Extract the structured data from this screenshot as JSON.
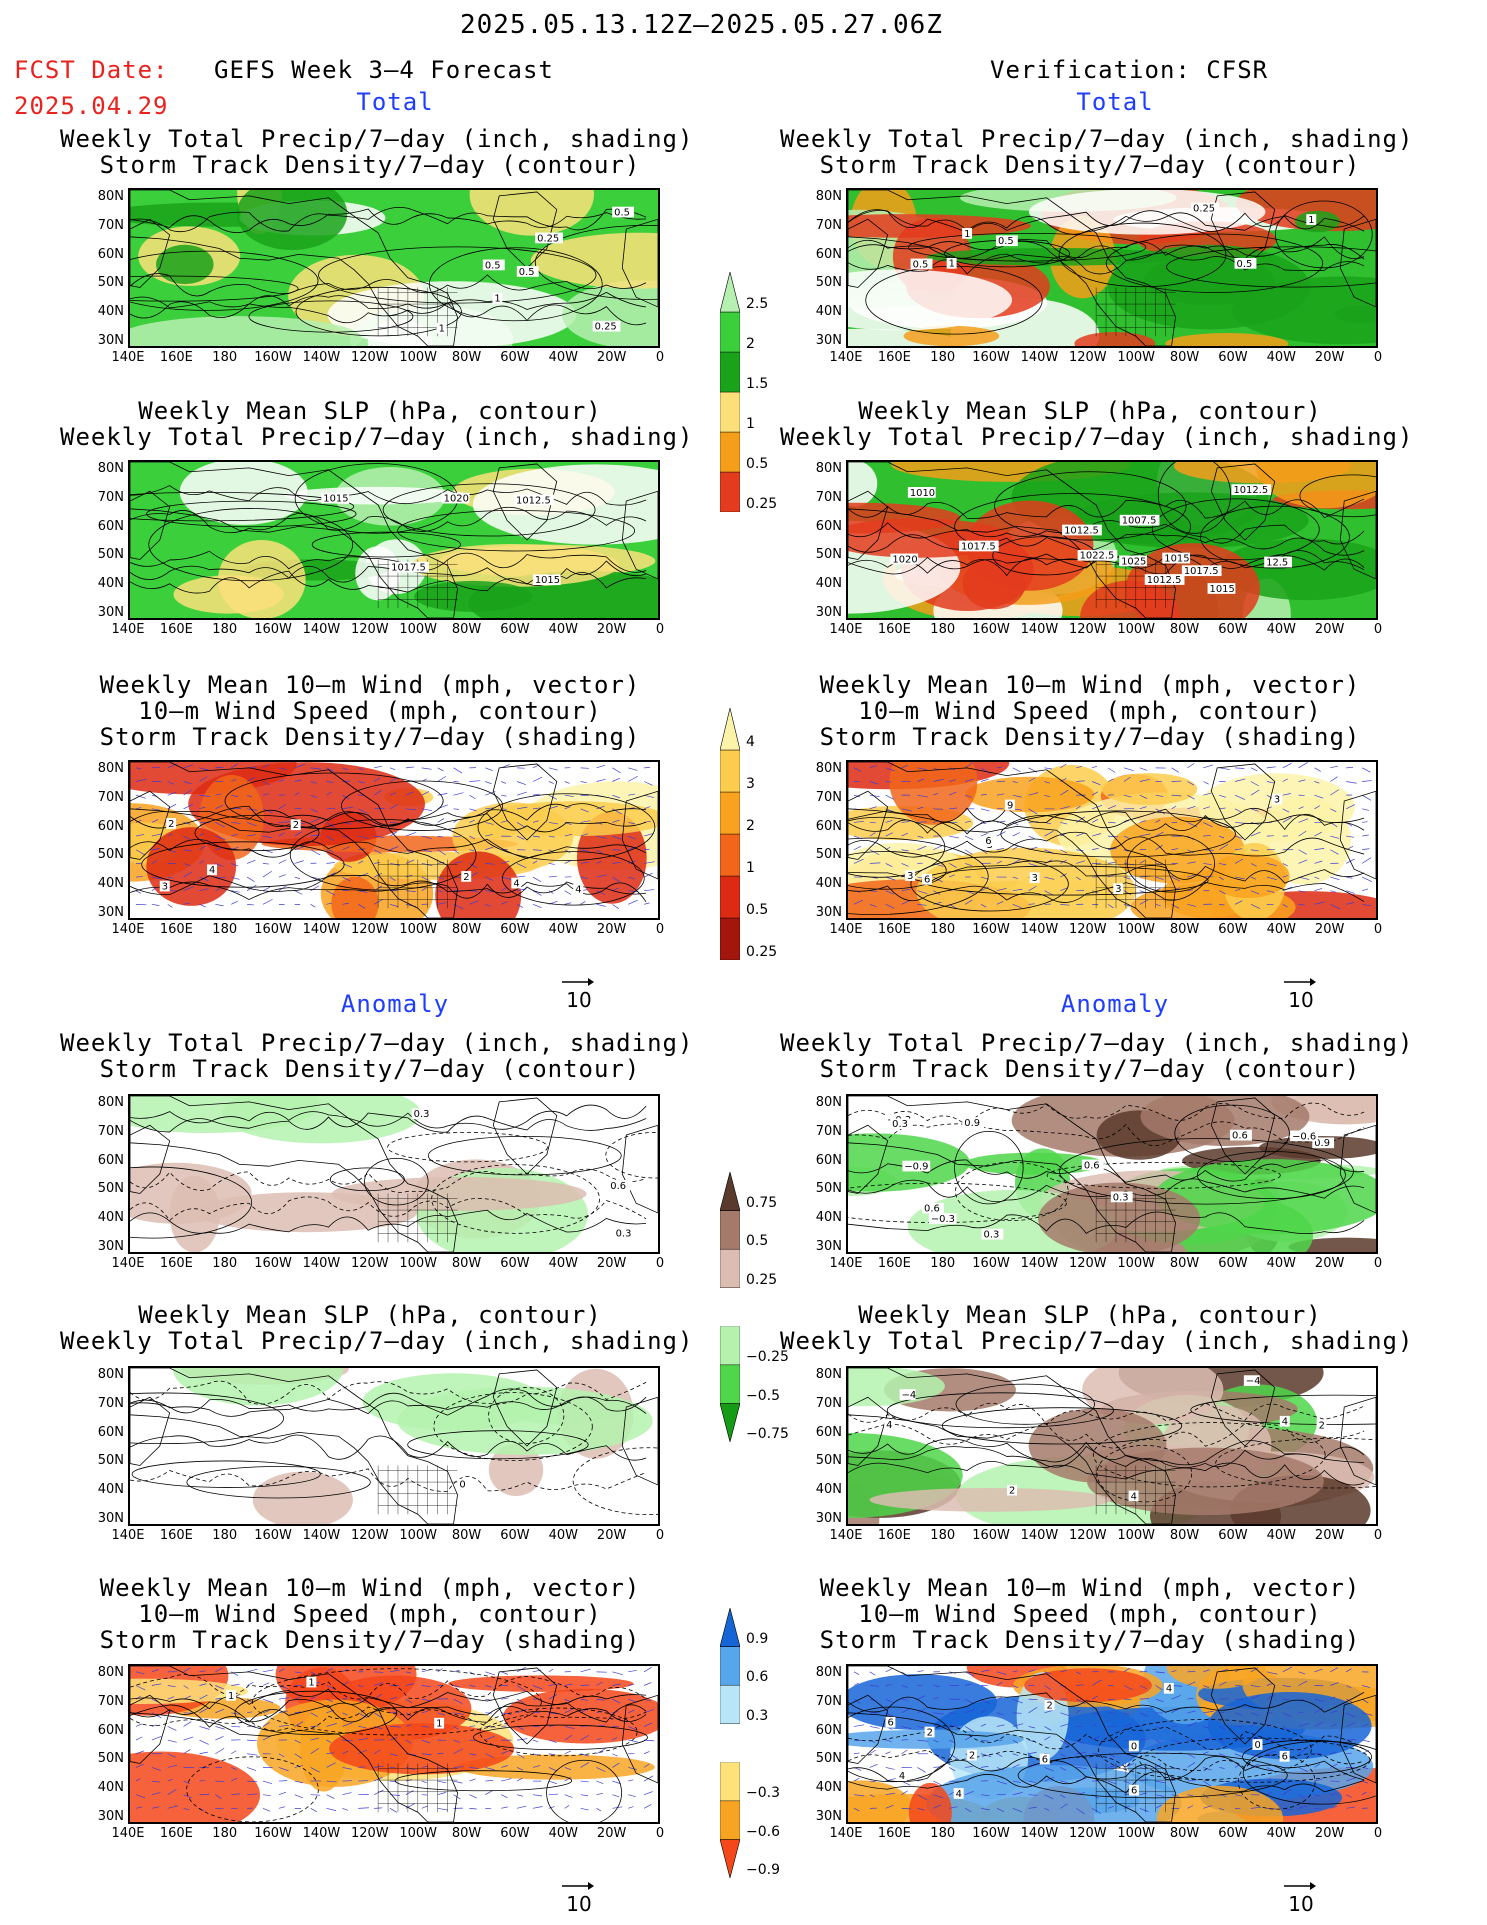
{
  "header": {
    "date_range": "2025.05.13.12Z—2025.05.27.06Z",
    "fcst_label": "FCST Date:",
    "fcst_date": "2025.04.29",
    "left_title": "GEFS Week 3—4 Forecast",
    "right_title": "Verification: CFSR"
  },
  "sections": {
    "total_label": "Total",
    "anomaly_label": "Anomaly"
  },
  "titles": {
    "precip_storm": [
      "Weekly Total Precip/7—day (inch, shading)",
      "Storm Track Density/7—day (contour)"
    ],
    "slp_precip": [
      "Weekly Mean SLP (hPa, contour)",
      "Weekly Total Precip/7—day (inch, shading)"
    ],
    "wind_storm": [
      "Weekly Mean 10—m Wind (mph, vector)",
      "10—m Wind Speed (mph, contour)",
      "Storm Track Density/7—day (shading)"
    ]
  },
  "axes": {
    "lat_ticks": [
      "80N",
      "70N",
      "60N",
      "50N",
      "40N",
      "30N"
    ],
    "lon_ticks": [
      "140E",
      "160E",
      "180",
      "160W",
      "140W",
      "120W",
      "100W",
      "80W",
      "60W",
      "40W",
      "20W",
      "0"
    ]
  },
  "vector_ref": "10",
  "colorbars": {
    "precip_total": {
      "labels": [
        "2.5",
        "2",
        "1.5",
        "1",
        "0.5",
        "0.25"
      ],
      "colors": [
        "#e33b1d",
        "#f59e1a",
        "#fbe07a",
        "#1aa21a",
        "#3ccf3c",
        "#b6f0b0"
      ]
    },
    "storm_total": {
      "labels": [
        "4",
        "3",
        "2",
        "1",
        "0.5",
        "0.25"
      ],
      "colors": [
        "#a3160e",
        "#dd2a13",
        "#f1661a",
        "#f9a21f",
        "#fccd4c",
        "#fdf3a8"
      ]
    },
    "precip_anom": {
      "labels": [
        "0.75",
        "0.5",
        "0.25",
        "−0.25",
        "−0.5",
        "−0.75"
      ],
      "colors": [
        "#169b16",
        "#4fd64a",
        "#b4f2ae",
        "#ffffff",
        "#dcbdb2",
        "#a47a6b",
        "#5a3a2c"
      ]
    },
    "storm_anom": {
      "labels": [
        "0.9",
        "0.6",
        "0.3",
        "−0.3",
        "−0.6",
        "−0.9"
      ],
      "colors": [
        "#f4471a",
        "#f8a423",
        "#fde279",
        "#ffffff",
        "#b9e6f7",
        "#57a5ea",
        "#1665d7"
      ]
    }
  },
  "panel_labels": {
    "p1_left": [
      "0.25",
      "0.5",
      "1",
      "0.5",
      "0.5",
      "0.25",
      "1"
    ],
    "p1_right": [
      "1",
      "1",
      "0.25",
      "0.5",
      "1",
      "0.5",
      "0.5"
    ],
    "p2_left": [
      "1020",
      "1017.5",
      "1015",
      "1012.5",
      "1015"
    ],
    "p2_right": [
      "12.5",
      "1015",
      "1012.5",
      "1010",
      "1012.5",
      "1017.5",
      "1007.5",
      "1022.5",
      "1020",
      "1025",
      "1015",
      "1017.5",
      "1012.5"
    ],
    "p3_left": [
      "2",
      "2",
      "4",
      "4",
      "3",
      "2",
      "4"
    ],
    "p3_right": [
      "3",
      "3",
      "3",
      "3",
      "6",
      "6",
      "9",
      "3"
    ],
    "p4_left": [
      "0.6",
      "0.3",
      "0.3"
    ],
    "p4_right": [
      "0.9",
      "0.6",
      "0.9",
      "−0.9",
      "−0.6",
      "−0.3",
      "0.3",
      "0.3",
      "0.6",
      "0.6",
      "−0.3",
      "0.3"
    ],
    "p5_left": [
      "0"
    ],
    "p5_right": [
      "4",
      "2",
      "4",
      "−4",
      "4",
      "2",
      "−4"
    ],
    "p6_left": [
      "1",
      "1",
      "1"
    ],
    "p6_right": [
      "0",
      "0",
      "2",
      "4",
      "2",
      "6",
      "6",
      "6",
      "4",
      "2",
      "4",
      "6"
    ]
  },
  "colors": {
    "accent_red": "#e8231f",
    "accent_blue": "#1f3dff",
    "vector_blue": "#3b3bd6"
  }
}
